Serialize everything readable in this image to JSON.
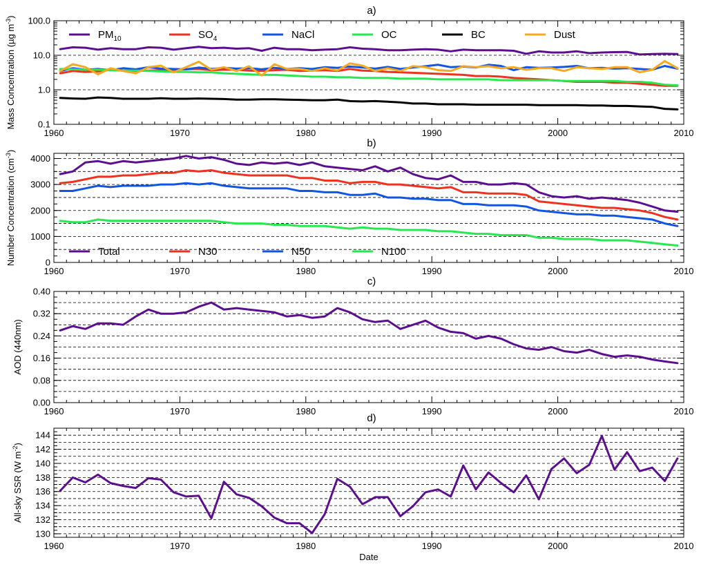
{
  "chart_data": [
    {
      "panel": "a)",
      "type": "line",
      "ylabel_parts": [
        "Mass Concentration (µg m",
        "-3",
        ")"
      ],
      "yscale": "log",
      "ylim": [
        0.1,
        100.0
      ],
      "yticks": [
        "100.0",
        "10.0",
        "1.0",
        "0.1"
      ],
      "ytick_values": [
        100,
        10,
        1,
        0.1
      ],
      "xlim": [
        1960,
        2010
      ],
      "xticks": [
        "1960",
        "1970",
        "1980",
        "1990",
        "2000",
        "2010"
      ],
      "xtick_values": [
        1960,
        1970,
        1980,
        1990,
        2000,
        2010
      ],
      "grid": "dashed horizontal at decades",
      "legend": "top, single row",
      "x": [
        1960.5,
        1961.5,
        1962.5,
        1963.5,
        1964.5,
        1965.5,
        1966.5,
        1967.5,
        1968.5,
        1969.5,
        1970.5,
        1971.5,
        1972.5,
        1973.5,
        1974.5,
        1975.5,
        1976.5,
        1977.5,
        1978.5,
        1979.5,
        1980.5,
        1981.5,
        1982.5,
        1983.5,
        1984.5,
        1985.5,
        1986.5,
        1987.5,
        1988.5,
        1989.5,
        1990.5,
        1991.5,
        1992.5,
        1993.5,
        1994.5,
        1995.5,
        1996.5,
        1997.5,
        1998.5,
        1999.5,
        2000.5,
        2001.5,
        2002.5,
        2003.5,
        2004.5,
        2005.5,
        2006.5,
        2007.5,
        2008.5,
        2009.5
      ],
      "series": [
        {
          "name": "PM",
          "sub": "10",
          "color": "#5b0f8f",
          "values": [
            15,
            17,
            16.5,
            14.5,
            16,
            15,
            15,
            17,
            16.5,
            14.5,
            16,
            17.5,
            16,
            16.5,
            15.5,
            16,
            13.5,
            16.5,
            15,
            15,
            14,
            14.5,
            15,
            17,
            15.5,
            15,
            14,
            14,
            14.5,
            15,
            14.5,
            13,
            14.5,
            14,
            14,
            14,
            13.5,
            11,
            13,
            12,
            12,
            13,
            11.5,
            12,
            12.3,
            12.5,
            10.5,
            10.8,
            11,
            10.8
          ]
        },
        {
          "name": "SO",
          "sub": "4",
          "color": "#ee3220",
          "values": [
            3,
            3.5,
            3.3,
            3.4,
            3.8,
            3.6,
            3.5,
            3.6,
            3.7,
            3.8,
            3.9,
            4,
            3.7,
            3.8,
            3.8,
            3.6,
            3.5,
            3.7,
            3.8,
            3.5,
            3.6,
            3.7,
            3.5,
            4,
            3.6,
            3.5,
            3.3,
            3.2,
            3.1,
            3.0,
            2.9,
            2.8,
            2.7,
            2.5,
            2.5,
            2.4,
            2.2,
            2.1,
            2.0,
            1.9,
            1.8,
            1.7,
            1.7,
            1.7,
            1.6,
            1.6,
            1.5,
            1.4,
            1.3,
            1.3
          ]
        },
        {
          "name": "NaCl",
          "color": "#1255e0",
          "values": [
            3.5,
            4.2,
            3.8,
            4,
            3.7,
            4.2,
            3.9,
            4.5,
            4.1,
            4,
            3.9,
            4.4,
            4,
            4.3,
            4.1,
            4.2,
            3.9,
            4.3,
            4,
            4.2,
            4,
            4.5,
            4.3,
            4.7,
            4.4,
            4.1,
            4.6,
            4,
            4.4,
            4.8,
            5.3,
            4.5,
            4.7,
            4.4,
            5.3,
            4.9,
            3.7,
            4.5,
            4.3,
            4.4,
            4.6,
            4.9,
            4.2,
            4.3,
            4.1,
            4.2,
            4.0,
            3.8,
            4.9,
            4.1
          ]
        },
        {
          "name": "OC",
          "color": "#27e850",
          "values": [
            4,
            3.9,
            3.8,
            3.8,
            3.7,
            3.6,
            3.6,
            3.5,
            3.4,
            3.3,
            3.3,
            3.2,
            3.2,
            3.0,
            2.9,
            2.8,
            2.7,
            2.7,
            2.6,
            2.5,
            2.4,
            2.4,
            2.3,
            2.3,
            2.2,
            2.2,
            2.2,
            2.1,
            2.1,
            2.1,
            2.0,
            2.0,
            2.0,
            2.0,
            2.0,
            1.9,
            1.9,
            1.9,
            1.9,
            1.9,
            1.8,
            1.8,
            1.8,
            1.8,
            1.8,
            1.7,
            1.7,
            1.6,
            1.4,
            1.35
          ]
        },
        {
          "name": "BC",
          "color": "#000000",
          "values": [
            0.58,
            0.56,
            0.55,
            0.6,
            0.58,
            0.55,
            0.55,
            0.55,
            0.57,
            0.55,
            0.55,
            0.56,
            0.55,
            0.54,
            0.52,
            0.52,
            0.53,
            0.53,
            0.52,
            0.51,
            0.5,
            0.5,
            0.52,
            0.47,
            0.46,
            0.47,
            0.45,
            0.43,
            0.4,
            0.4,
            0.38,
            0.38,
            0.38,
            0.37,
            0.37,
            0.37,
            0.37,
            0.37,
            0.36,
            0.36,
            0.36,
            0.36,
            0.35,
            0.35,
            0.34,
            0.34,
            0.33,
            0.32,
            0.28,
            0.27
          ]
        },
        {
          "name": "Dust",
          "color": "#f6a820",
          "values": [
            3.5,
            5.5,
            4.5,
            2.8,
            4.2,
            3.5,
            3,
            4.5,
            5,
            3.2,
            4.5,
            6.5,
            3.8,
            4.5,
            3.5,
            4.8,
            2.6,
            5.5,
            4,
            4,
            3.5,
            4.2,
            3.6,
            5.8,
            5,
            3.5,
            4.2,
            3.5,
            4.8,
            4.5,
            3.7,
            3.5,
            4.8,
            4.5,
            4.8,
            4.2,
            4.5,
            3.8,
            4.2,
            4.2,
            3.5,
            4.5,
            4.2,
            4,
            4.5,
            4.5,
            3.2,
            3.8,
            6.8,
            4.2
          ]
        }
      ]
    },
    {
      "panel": "b)",
      "type": "line",
      "ylabel_parts": [
        "Number Concentration (cm",
        "-3",
        ")"
      ],
      "ylim": [
        0,
        4200
      ],
      "yticks": [
        "4000",
        "3000",
        "2000",
        "1000",
        "0"
      ],
      "ytick_values": [
        4000,
        3000,
        2000,
        1000,
        0
      ],
      "xlim": [
        1960,
        2010
      ],
      "xticks": [
        "1960",
        "1970",
        "1980",
        "1990",
        "2000",
        "2010"
      ],
      "xtick_values": [
        1960,
        1970,
        1980,
        1990,
        2000,
        2010
      ],
      "grid": "dashed horizontal every 500",
      "legend": "bottom-left, single row",
      "x": [
        1960.5,
        1961.5,
        1962.5,
        1963.5,
        1964.5,
        1965.5,
        1966.5,
        1967.5,
        1968.5,
        1969.5,
        1970.5,
        1971.5,
        1972.5,
        1973.5,
        1974.5,
        1975.5,
        1976.5,
        1977.5,
        1978.5,
        1979.5,
        1980.5,
        1981.5,
        1982.5,
        1983.5,
        1984.5,
        1985.5,
        1986.5,
        1987.5,
        1988.5,
        1989.5,
        1990.5,
        1991.5,
        1992.5,
        1993.5,
        1994.5,
        1995.5,
        1996.5,
        1997.5,
        1998.5,
        1999.5,
        2000.5,
        2001.5,
        2002.5,
        2003.5,
        2004.5,
        2005.5,
        2006.5,
        2007.5,
        2008.5,
        2009.5
      ],
      "series": [
        {
          "name": "Total",
          "color": "#5b0f8f",
          "values": [
            3400,
            3500,
            3850,
            3900,
            3800,
            3900,
            3850,
            3900,
            3950,
            4000,
            4100,
            4000,
            4050,
            3950,
            3800,
            3750,
            3850,
            3800,
            3850,
            3750,
            3850,
            3700,
            3650,
            3600,
            3550,
            3700,
            3500,
            3650,
            3400,
            3250,
            3200,
            3350,
            3100,
            3100,
            3000,
            3000,
            3050,
            3000,
            2700,
            2550,
            2500,
            2550,
            2450,
            2500,
            2450,
            2400,
            2300,
            2150,
            2000,
            1950
          ]
        },
        {
          "name": "N30",
          "color": "#ee3220",
          "values": [
            3050,
            3100,
            3200,
            3300,
            3300,
            3350,
            3350,
            3400,
            3450,
            3450,
            3550,
            3500,
            3550,
            3450,
            3400,
            3350,
            3350,
            3350,
            3350,
            3250,
            3250,
            3150,
            3150,
            3050,
            3100,
            3100,
            3000,
            3000,
            2950,
            2900,
            2850,
            2900,
            2700,
            2700,
            2650,
            2650,
            2650,
            2600,
            2350,
            2300,
            2250,
            2200,
            2150,
            2100,
            2100,
            2050,
            2000,
            1900,
            1750,
            1650
          ]
        },
        {
          "name": "N50",
          "color": "#1255e0",
          "values": [
            2750,
            2750,
            2850,
            2950,
            2900,
            2950,
            2950,
            2950,
            3000,
            3000,
            3050,
            3000,
            3050,
            2950,
            2900,
            2850,
            2850,
            2850,
            2850,
            2750,
            2750,
            2700,
            2700,
            2600,
            2600,
            2650,
            2500,
            2500,
            2450,
            2450,
            2400,
            2400,
            2250,
            2250,
            2200,
            2200,
            2200,
            2150,
            2000,
            1950,
            1900,
            1850,
            1850,
            1800,
            1800,
            1750,
            1700,
            1650,
            1500,
            1400
          ]
        },
        {
          "name": "N100",
          "color": "#27e850",
          "values": [
            1600,
            1550,
            1550,
            1650,
            1600,
            1600,
            1600,
            1600,
            1600,
            1600,
            1600,
            1600,
            1600,
            1550,
            1500,
            1500,
            1500,
            1450,
            1450,
            1400,
            1400,
            1400,
            1350,
            1300,
            1350,
            1300,
            1300,
            1250,
            1250,
            1250,
            1200,
            1200,
            1150,
            1100,
            1100,
            1050,
            1050,
            1050,
            950,
            950,
            900,
            900,
            900,
            850,
            850,
            850,
            800,
            750,
            700,
            650
          ]
        }
      ]
    },
    {
      "panel": "c)",
      "type": "line",
      "ylabel": "AOD (440nm)",
      "ylim": [
        0,
        0.4
      ],
      "yticks": [
        "0.40",
        "0.32",
        "0.24",
        "0.16",
        "0.08",
        "0.00"
      ],
      "ytick_values": [
        0.4,
        0.32,
        0.24,
        0.16,
        0.08,
        0.0
      ],
      "xlim": [
        1960,
        2010
      ],
      "xticks": [
        "1960",
        "1970",
        "1980",
        "1990",
        "2000",
        "2010"
      ],
      "xtick_values": [
        1960,
        1970,
        1980,
        1990,
        2000,
        2010
      ],
      "grid": "dashed horizontal every 0.04",
      "x": [
        1960.5,
        1961.5,
        1962.5,
        1963.5,
        1964.5,
        1965.5,
        1966.5,
        1967.5,
        1968.5,
        1969.5,
        1970.5,
        1971.5,
        1972.5,
        1973.5,
        1974.5,
        1975.5,
        1976.5,
        1977.5,
        1978.5,
        1979.5,
        1980.5,
        1981.5,
        1982.5,
        1983.5,
        1984.5,
        1985.5,
        1986.5,
        1987.5,
        1988.5,
        1989.5,
        1990.5,
        1991.5,
        1992.5,
        1993.5,
        1994.5,
        1995.5,
        1996.5,
        1997.5,
        1998.5,
        1999.5,
        2000.5,
        2001.5,
        2002.5,
        2003.5,
        2004.5,
        2005.5,
        2006.5,
        2007.5,
        2008.5,
        2009.5
      ],
      "series": [
        {
          "name": "AOD",
          "color": "#5b0f8f",
          "values": [
            0.26,
            0.275,
            0.265,
            0.285,
            0.285,
            0.28,
            0.31,
            0.335,
            0.32,
            0.32,
            0.325,
            0.345,
            0.36,
            0.335,
            0.34,
            0.335,
            0.33,
            0.325,
            0.31,
            0.315,
            0.305,
            0.31,
            0.34,
            0.325,
            0.3,
            0.29,
            0.295,
            0.265,
            0.28,
            0.295,
            0.27,
            0.255,
            0.25,
            0.23,
            0.24,
            0.23,
            0.21,
            0.195,
            0.19,
            0.2,
            0.185,
            0.18,
            0.19,
            0.175,
            0.165,
            0.17,
            0.165,
            0.155,
            0.148,
            0.142
          ]
        }
      ]
    },
    {
      "panel": "d)",
      "type": "line",
      "ylabel_parts": [
        "All-sky SSR (W m",
        "-2",
        ")"
      ],
      "ylim": [
        129.5,
        145
      ],
      "yticks": [
        "144",
        "142",
        "140",
        "138",
        "136",
        "134",
        "132",
        "130"
      ],
      "ytick_values": [
        144,
        142,
        140,
        138,
        136,
        134,
        132,
        130
      ],
      "xlim": [
        1960,
        2010
      ],
      "xticks": [
        "1960",
        "1970",
        "1980",
        "1990",
        "2000",
        "2010"
      ],
      "xtick_values": [
        1960,
        1970,
        1980,
        1990,
        2000,
        2010
      ],
      "xlabel": "Date",
      "grid": "dashed horizontal every 1",
      "x": [
        1960.5,
        1961.5,
        1962.5,
        1963.5,
        1964.5,
        1965.5,
        1966.5,
        1967.5,
        1968.5,
        1969.5,
        1970.5,
        1971.5,
        1972.5,
        1973.5,
        1974.5,
        1975.5,
        1976.5,
        1977.5,
        1978.5,
        1979.5,
        1980.5,
        1981.5,
        1982.5,
        1983.5,
        1984.5,
        1985.5,
        1986.5,
        1987.5,
        1988.5,
        1989.5,
        1990.5,
        1991.5,
        1992.5,
        1993.5,
        1994.5,
        1995.5,
        1996.5,
        1997.5,
        1998.5,
        1999.5,
        2000.5,
        2001.5,
        2002.5,
        2003.5,
        2004.5,
        2005.5,
        2006.5,
        2007.5,
        2008.5,
        2009.5
      ],
      "series": [
        {
          "name": "SSR",
          "color": "#5b0f8f",
          "values": [
            136.1,
            138.0,
            137.3,
            138.4,
            137.2,
            136.8,
            136.5,
            137.9,
            137.7,
            135.9,
            135.3,
            135.4,
            132.2,
            137.4,
            135.6,
            135.1,
            133.9,
            132.3,
            131.5,
            131.5,
            130.1,
            132.8,
            137.8,
            136.7,
            134.2,
            135.2,
            135.2,
            132.5,
            133.9,
            135.9,
            136.3,
            135.3,
            139.7,
            136.3,
            138.7,
            137.2,
            135.9,
            138.3,
            134.9,
            139.2,
            140.7,
            138.6,
            139.8,
            143.9,
            139.1,
            141.6,
            138.9,
            139.4,
            137.5,
            140.7
          ]
        }
      ]
    }
  ]
}
